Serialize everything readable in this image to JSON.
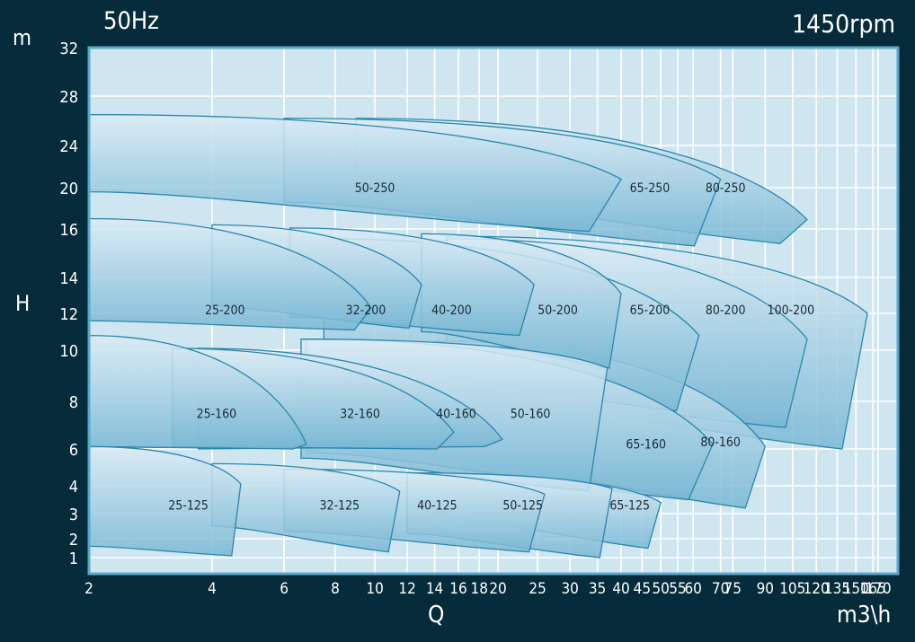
{
  "chart_data": {
    "type": "area",
    "title": "",
    "frequency": "50Hz",
    "speed": "1450rpm",
    "xlabel": "Q",
    "xunit": "m3\\h",
    "ylabel": "H",
    "yunit": "m",
    "xscale": "log",
    "xlim": [
      2,
      190
    ],
    "ylim": [
      0,
      32
    ],
    "grid": true,
    "x_ticks": [
      2,
      4,
      6,
      8,
      10,
      12,
      14,
      16,
      18,
      20,
      25,
      30,
      35,
      40,
      45,
      50,
      55,
      60,
      70,
      75,
      90,
      105,
      120,
      135,
      150,
      165,
      170
    ],
    "y_ticks": [
      1,
      2,
      3,
      4,
      6,
      8,
      10,
      12,
      14,
      16,
      20,
      24,
      28,
      32
    ],
    "fill_top_color": "#dcecf5",
    "fill_bottom_color": "#78b7d4",
    "outline_color": "#2b86ac",
    "pumps": [
      {
        "name": "100-200",
        "q_min": 15,
        "q_max": 160,
        "h_max": 15.7,
        "h_tip": 12,
        "h_bot_end": 6,
        "h_bot_start": 8.2,
        "label_at": [
          104,
          12.2
        ]
      },
      {
        "name": "80-250",
        "q_min": 9,
        "q_max": 114,
        "h_max": 26.2,
        "h_tip": 16.9,
        "h_bot_end": 15.4,
        "h_bot_start": 19.8,
        "label_at": [
          72,
          20
        ]
      },
      {
        "name": "80-200",
        "q_min": 15,
        "q_max": 114,
        "h_max": 15.6,
        "h_tip": 10.6,
        "h_bot_end": 6.9,
        "h_bot_start": 8.5,
        "label_at": [
          72,
          12.2
        ]
      },
      {
        "name": "80-160",
        "q_min": 14,
        "q_max": 90,
        "h_max": 10.5,
        "h_tip": 6.1,
        "h_bot_end": 3.2,
        "h_bot_start": 5.5,
        "label_at": [
          70,
          6.3
        ]
      },
      {
        "name": "65-250",
        "q_min": 6,
        "q_max": 70,
        "h_max": 26.2,
        "h_tip": 20.8,
        "h_bot_end": 15.3,
        "h_bot_start": 18.6,
        "label_at": [
          47,
          20
        ]
      },
      {
        "name": "65-200",
        "q_min": 7.5,
        "q_max": 62,
        "h_max": 15.6,
        "h_tip": 10.8,
        "h_bot_end": 7.6,
        "h_bot_start": 9.5,
        "label_at": [
          47,
          12.2
        ]
      },
      {
        "name": "65-160",
        "q_min": 6.8,
        "q_max": 67,
        "h_max": 10.6,
        "h_tip": 6.2,
        "h_bot_end": 3.5,
        "h_bot_start": 5.8,
        "label_at": [
          46,
          6.2
        ]
      },
      {
        "name": "65-125",
        "q_min": 15,
        "q_max": 50,
        "h_max": 4.6,
        "h_tip": 3.4,
        "h_bot_end": 1.5,
        "h_bot_start": 2.8,
        "label_at": [
          42,
          3.3
        ]
      },
      {
        "name": "50-250",
        "q_min": 2,
        "q_max": 40,
        "h_max": 26.5,
        "h_tip": 20.8,
        "h_bot_end": 15.9,
        "h_bot_start": 19.6,
        "label_at": [
          10,
          20
        ]
      },
      {
        "name": "50-200",
        "q_min": 13,
        "q_max": 40,
        "h_max": 15.8,
        "h_tip": 13.1,
        "h_bot_end": 9.3,
        "h_bot_start": 11,
        "label_at": [
          28,
          12.2
        ]
      },
      {
        "name": "50-160",
        "q_min": 6.6,
        "q_max": 37,
        "h_max": 10.6,
        "h_tip": 9.3,
        "h_bot_end": 3.8,
        "h_bot_start": 5.5,
        "label_at": [
          24,
          7.5
        ]
      },
      {
        "name": "50-125",
        "q_min": 12,
        "q_max": 38,
        "h_max": 4.7,
        "h_tip": 3.9,
        "h_bot_end": 1,
        "h_bot_start": 2.2,
        "label_at": [
          23,
          3.3
        ]
      },
      {
        "name": "40-200",
        "q_min": 6.2,
        "q_max": 24.5,
        "h_max": 16.1,
        "h_tip": 13.6,
        "h_bot_end": 10.8,
        "h_bot_start": 11.8,
        "label_at": [
          15.4,
          12.2
        ]
      },
      {
        "name": "40-160",
        "q_min": 3.7,
        "q_max": 20.5,
        "h_max": 10.1,
        "h_tip": 6.4,
        "h_bot_end": 6.1,
        "h_bot_start": 6,
        "label_at": [
          15.8,
          7.5
        ]
      },
      {
        "name": "40-125",
        "q_min": 6,
        "q_max": 26,
        "h_max": 4.9,
        "h_tip": 3.7,
        "h_bot_end": 1.3,
        "h_bot_start": 2.3,
        "label_at": [
          14.2,
          3.3
        ]
      },
      {
        "name": "32-200",
        "q_min": 4,
        "q_max": 13,
        "h_max": 16.4,
        "h_tip": 13.6,
        "h_bot_end": 11.2,
        "h_bot_start": 12.4,
        "label_at": [
          9.5,
          12.2
        ]
      },
      {
        "name": "32-160",
        "q_min": 3.2,
        "q_max": 15.6,
        "h_max": 10.1,
        "h_tip": 6.7,
        "h_bot_end": 6,
        "h_bot_start": 6.1,
        "label_at": [
          9.2,
          7.5
        ]
      },
      {
        "name": "32-125",
        "q_min": 4,
        "q_max": 11.5,
        "h_max": 5.2,
        "h_tip": 3.8,
        "h_bot_end": 1.3,
        "h_bot_start": 2.5,
        "label_at": [
          8.2,
          3.3
        ]
      },
      {
        "name": "25-200",
        "q_min": 2,
        "q_max": 9.8,
        "h_max": 17,
        "h_tip": 12.3,
        "h_bot_end": 11.1,
        "h_bot_start": 11.6,
        "label_at": [
          4.3,
          12.2
        ]
      },
      {
        "name": "25-160",
        "q_min": 2,
        "q_max": 6.8,
        "h_max": 10.8,
        "h_tip": 6.2,
        "h_bot_end": 6,
        "h_bot_start": 6.1,
        "label_at": [
          4.1,
          7.5
        ]
      },
      {
        "name": "25-125",
        "q_min": 2,
        "q_max": 4.7,
        "h_max": 6.1,
        "h_tip": 4.1,
        "h_bot_end": 1.1,
        "h_bot_start": 1.6,
        "label_at": [
          3.5,
          3.3
        ]
      }
    ]
  }
}
